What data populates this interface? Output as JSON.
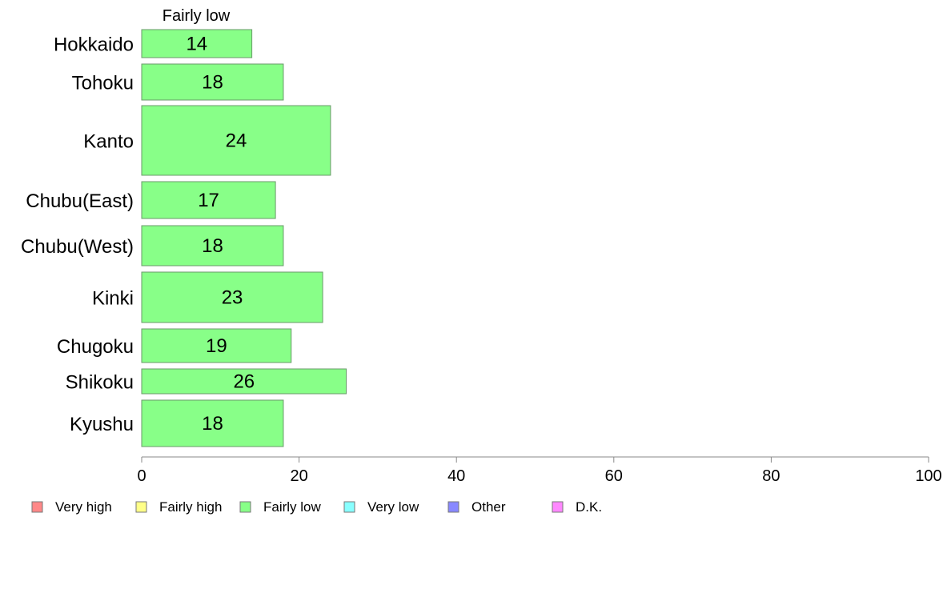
{
  "chart_data": {
    "type": "bar",
    "orientation": "horizontal",
    "top_label": "Fairly low",
    "categories": [
      "Hokkaido",
      "Tohoku",
      "Kanto",
      "Chubu(East)",
      "Chubu(West)",
      "Kinki",
      "Chugoku",
      "Shikoku",
      "Kyushu"
    ],
    "series": [
      {
        "name": "Fairly low",
        "color": "#88ff88",
        "values": [
          14,
          18,
          24,
          17,
          18,
          23,
          19,
          26,
          18
        ]
      }
    ],
    "xlim": [
      0,
      100
    ],
    "xticks": [
      "0",
      "20",
      "40",
      "60",
      "80",
      "100"
    ],
    "grid": false,
    "legend_position": "bottom-left",
    "legend": [
      {
        "label": "Very high",
        "color": "#ff8888"
      },
      {
        "label": "Fairly high",
        "color": "#ffff88"
      },
      {
        "label": "Fairly low",
        "color": "#88ff88"
      },
      {
        "label": "Very low",
        "color": "#88ffff"
      },
      {
        "label": "Other",
        "color": "#8888ff"
      },
      {
        "label": "D.K.",
        "color": "#ff88ff"
      }
    ]
  }
}
